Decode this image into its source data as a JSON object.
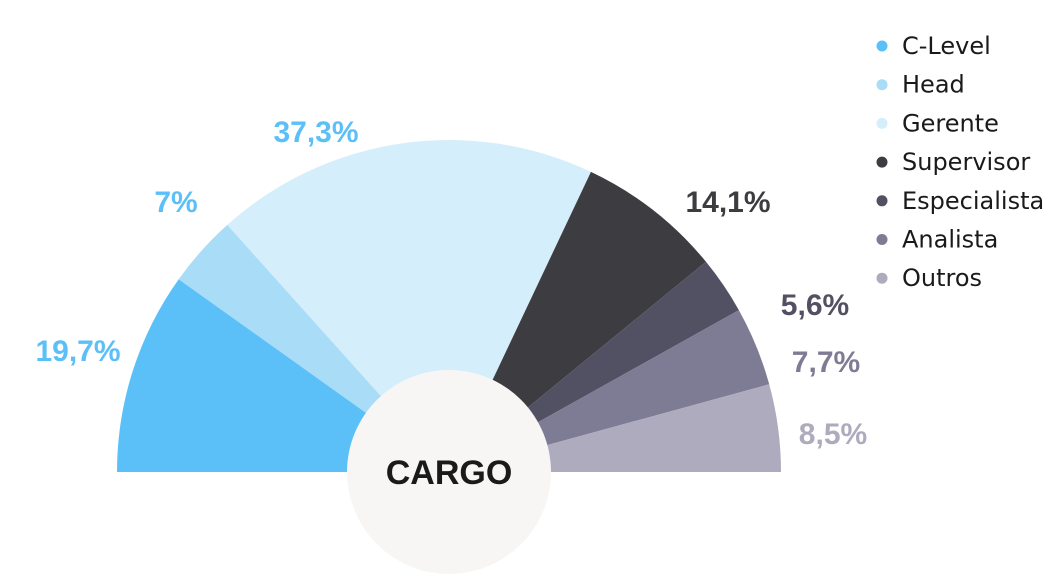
{
  "chart_data": {
    "type": "pie",
    "variant": "semicircle",
    "center_label": "CARGO",
    "legend_placement": "top-right",
    "slices": [
      {
        "name": "C-Level",
        "value": 19.7,
        "label": "19,7%",
        "color": "#5bc0f8"
      },
      {
        "name": "Head",
        "value": 7,
        "label": "7%",
        "color": "#a8dcf7"
      },
      {
        "name": "Gerente",
        "value": 37.3,
        "label": "37,3%",
        "color": "#d5eefb"
      },
      {
        "name": "Supervisor",
        "value": 14.1,
        "label": "14,1%",
        "color": "#3d3d41"
      },
      {
        "name": "Especialista",
        "value": 5.6,
        "label": "5,6%",
        "color": "#525063"
      },
      {
        "name": "Analista",
        "value": 7.7,
        "label": "7,7%",
        "color": "#7e7b94"
      },
      {
        "name": "Outros",
        "value": 8.5,
        "label": "8,5%",
        "color": "#adabbd"
      }
    ],
    "label_colors": {
      "C-Level": "#5bc0f8",
      "Head": "#5bc0f8",
      "Gerente": "#5bc0f8",
      "Supervisor": "#3d3d41",
      "Especialista": "#525063",
      "Analista": "#7e7b94",
      "Outros": "#adabbd"
    }
  }
}
